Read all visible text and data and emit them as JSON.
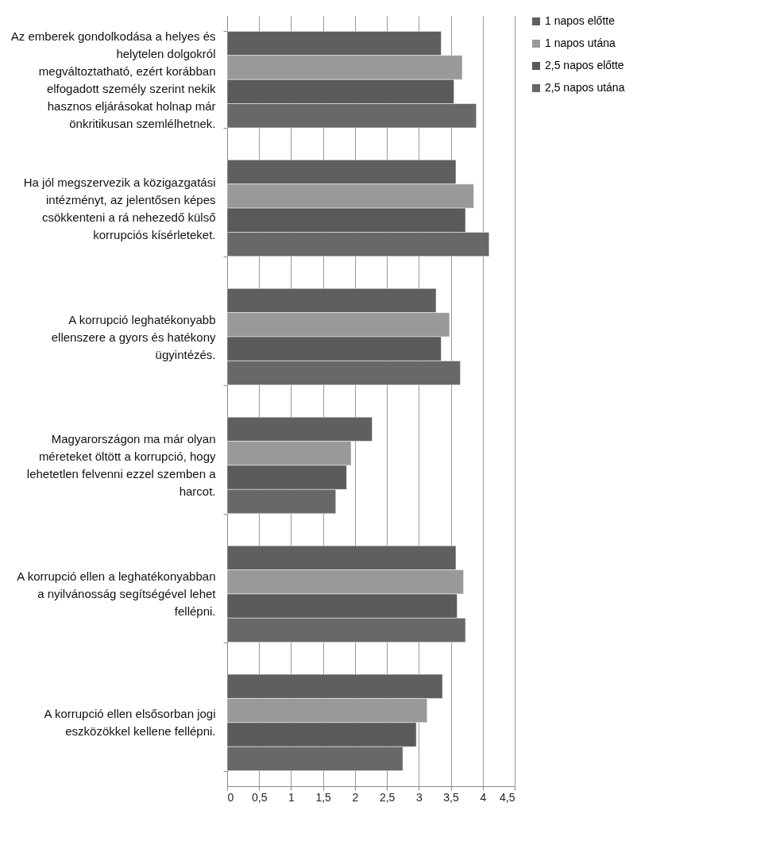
{
  "chart_data": {
    "type": "bar",
    "orientation": "horizontal",
    "categories": [
      "Az emberek gondolkodása a helyes és helytelen dolgokról megváltoztatható, ezért korábban elfogadott személy szerint nekik hasznos eljárásokat holnap már önkritikusan szemlélhetnek.",
      "Ha jól megszervezik a közigazgatási intézményt, az jelentősen képes csökkenteni a rá nehezedő külső korrupciós kísérleteket.",
      "A korrupció leghatékonyabb ellenszere a gyors és hatékony ügyintézés.",
      "Magyarországon ma már olyan méreteket öltött a korrupció, hogy lehetetlen felvenni ezzel szemben a harcot.",
      "A korrupció ellen a leghatékonyabban a nyilvánosság segítségével lehet fellépni.",
      "A korrupció ellen elsősorban jogi eszközökkel kellene fellépni."
    ],
    "series": [
      {
        "name": "1 napos előtte",
        "color": "#5f5f5f",
        "values": [
          3.35,
          3.58,
          3.27,
          2.27,
          3.58,
          3.37
        ]
      },
      {
        "name": "1 napos utána",
        "color": "#999999",
        "values": [
          3.68,
          3.86,
          3.48,
          1.94,
          3.7,
          3.13
        ]
      },
      {
        "name": "2,5 napos előtte",
        "color": "#5a5a5a",
        "values": [
          3.55,
          3.73,
          3.35,
          1.87,
          3.6,
          2.96
        ]
      },
      {
        "name": "2,5 napos utána",
        "color": "#686868",
        "values": [
          3.9,
          4.1,
          3.65,
          1.7,
          3.73,
          2.75
        ]
      }
    ],
    "xlim": [
      0,
      4.5
    ],
    "xticks": [
      0,
      {
        "value": 0.5,
        "label": "0,5"
      },
      1,
      {
        "value": 1.5,
        "label": "1,5"
      },
      2,
      {
        "value": 2.5,
        "label": "2,5"
      },
      3,
      {
        "value": 3.5,
        "label": "3,5"
      },
      4,
      {
        "value": 4.5,
        "label": "4,5"
      }
    ],
    "grid": "x",
    "legend": "right"
  }
}
